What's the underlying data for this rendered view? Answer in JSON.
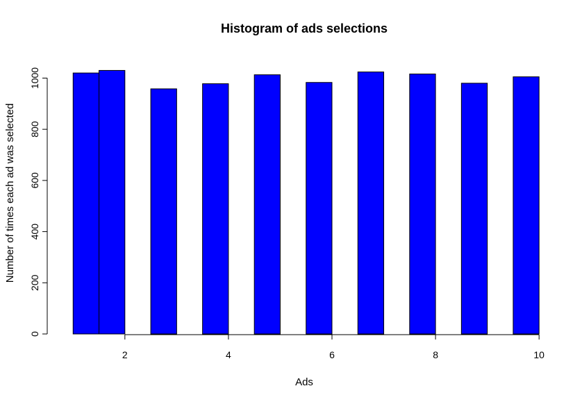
{
  "chart_data": {
    "type": "bar",
    "title": "Histogram of ads selections",
    "xlabel": "Ads",
    "ylabel": "Number of times each ad was selected",
    "bar_color": "#0000ff",
    "bar_edge_color": "#000000",
    "bins": [
      {
        "from": 1.0,
        "to": 1.5,
        "value": 1020
      },
      {
        "from": 1.5,
        "to": 2.0,
        "value": 1030
      },
      {
        "from": 2.5,
        "to": 3.0,
        "value": 958
      },
      {
        "from": 3.5,
        "to": 4.0,
        "value": 978
      },
      {
        "from": 4.5,
        "to": 5.0,
        "value": 1013
      },
      {
        "from": 5.5,
        "to": 6.0,
        "value": 983
      },
      {
        "from": 6.5,
        "to": 7.0,
        "value": 1024
      },
      {
        "from": 7.5,
        "to": 8.0,
        "value": 1016
      },
      {
        "from": 8.5,
        "to": 9.0,
        "value": 980
      },
      {
        "from": 9.5,
        "to": 10.0,
        "value": 1005
      }
    ],
    "xlim": [
      0.5,
      10.4
    ],
    "ylim": [
      0,
      1080
    ],
    "x_axis_range": [
      2,
      10
    ],
    "y_axis_range": [
      0,
      1000
    ],
    "xticks": [
      "2",
      "4",
      "6",
      "8",
      "10"
    ],
    "yticks": [
      "0",
      "200",
      "400",
      "600",
      "800",
      "1000"
    ],
    "grid": false,
    "legend": false
  }
}
